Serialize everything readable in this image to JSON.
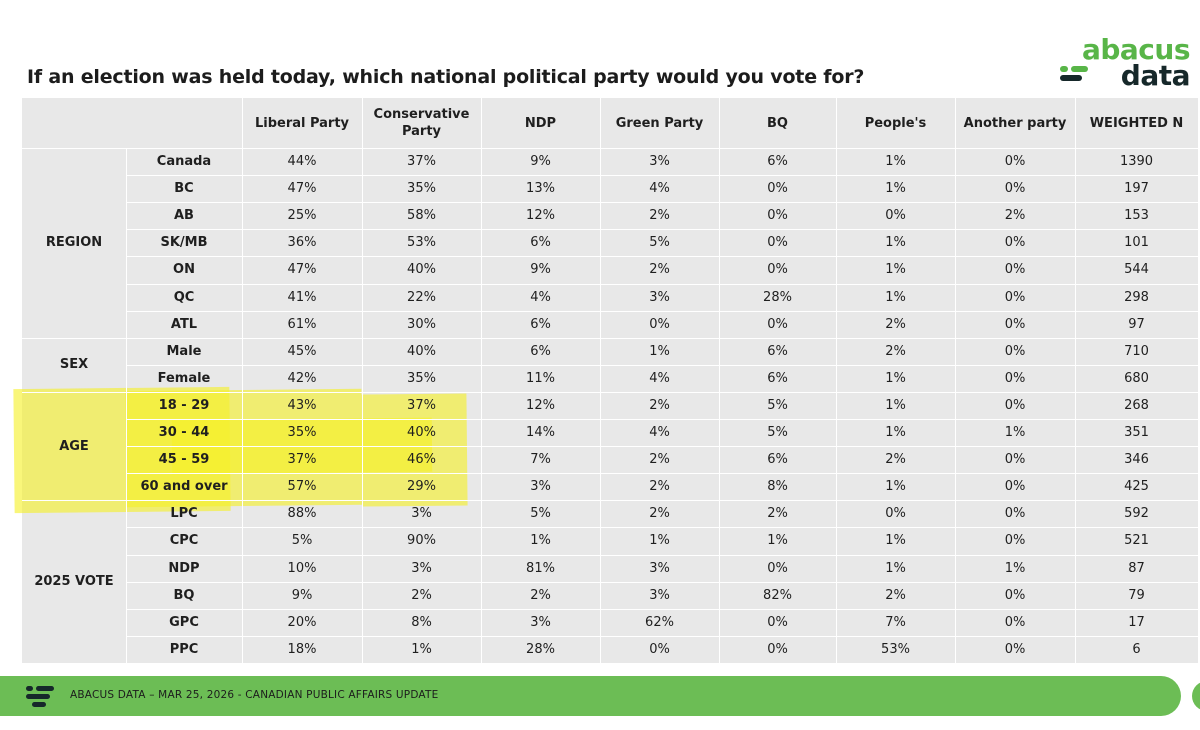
{
  "title": "If an election was held today, which national political party would you vote for?",
  "logo": {
    "top": "abacus",
    "bottom": "data"
  },
  "colors": {
    "brand_green": "#58b548",
    "brand_dark": "#16282a",
    "footer_green": "#6cbd55",
    "highlight": "#f5f028"
  },
  "chart_data": {
    "type": "table",
    "title": "If an election was held today, which national political party would you vote for?",
    "columns": [
      "Liberal Party",
      "Conservative Party",
      "NDP",
      "Green Party",
      "BQ",
      "People's",
      "Another party",
      "WEIGHTED N"
    ],
    "groups": [
      {
        "name": "REGION",
        "start": 0,
        "count": 7
      },
      {
        "name": "SEX",
        "start": 7,
        "count": 2
      },
      {
        "name": "AGE",
        "start": 9,
        "count": 4
      },
      {
        "name": "2025 VOTE",
        "start": 13,
        "count": 6
      }
    ],
    "rows": [
      {
        "label": "Canada",
        "values": [
          "44%",
          "37%",
          "9%",
          "3%",
          "6%",
          "1%",
          "0%",
          "1390"
        ]
      },
      {
        "label": "BC",
        "values": [
          "47%",
          "35%",
          "13%",
          "4%",
          "0%",
          "1%",
          "0%",
          "197"
        ]
      },
      {
        "label": "AB",
        "values": [
          "25%",
          "58%",
          "12%",
          "2%",
          "0%",
          "0%",
          "2%",
          "153"
        ]
      },
      {
        "label": "SK/MB",
        "values": [
          "36%",
          "53%",
          "6%",
          "5%",
          "0%",
          "1%",
          "0%",
          "101"
        ]
      },
      {
        "label": "ON",
        "values": [
          "47%",
          "40%",
          "9%",
          "2%",
          "0%",
          "1%",
          "0%",
          "544"
        ]
      },
      {
        "label": "QC",
        "values": [
          "41%",
          "22%",
          "4%",
          "3%",
          "28%",
          "1%",
          "0%",
          "298"
        ]
      },
      {
        "label": "ATL",
        "values": [
          "61%",
          "30%",
          "6%",
          "0%",
          "0%",
          "2%",
          "0%",
          "97"
        ]
      },
      {
        "label": "Male",
        "values": [
          "45%",
          "40%",
          "6%",
          "1%",
          "6%",
          "2%",
          "0%",
          "710"
        ]
      },
      {
        "label": "Female",
        "values": [
          "42%",
          "35%",
          "11%",
          "4%",
          "6%",
          "1%",
          "0%",
          "680"
        ]
      },
      {
        "label": "18 - 29",
        "values": [
          "43%",
          "37%",
          "12%",
          "2%",
          "5%",
          "1%",
          "0%",
          "268"
        ]
      },
      {
        "label": "30 - 44",
        "values": [
          "35%",
          "40%",
          "14%",
          "4%",
          "5%",
          "1%",
          "1%",
          "351"
        ]
      },
      {
        "label": "45 - 59",
        "values": [
          "37%",
          "46%",
          "7%",
          "2%",
          "6%",
          "2%",
          "0%",
          "346"
        ]
      },
      {
        "label": "60 and over",
        "values": [
          "57%",
          "29%",
          "3%",
          "2%",
          "8%",
          "1%",
          "0%",
          "425"
        ]
      },
      {
        "label": "LPC",
        "values": [
          "88%",
          "3%",
          "5%",
          "2%",
          "2%",
          "0%",
          "0%",
          "592"
        ]
      },
      {
        "label": "CPC",
        "values": [
          "5%",
          "90%",
          "1%",
          "1%",
          "1%",
          "1%",
          "0%",
          "521"
        ]
      },
      {
        "label": "NDP",
        "values": [
          "10%",
          "3%",
          "81%",
          "3%",
          "0%",
          "1%",
          "1%",
          "87"
        ]
      },
      {
        "label": "BQ",
        "values": [
          "9%",
          "2%",
          "2%",
          "3%",
          "82%",
          "2%",
          "0%",
          "79"
        ]
      },
      {
        "label": "GPC",
        "values": [
          "20%",
          "8%",
          "3%",
          "62%",
          "0%",
          "7%",
          "0%",
          "17"
        ]
      },
      {
        "label": "PPC",
        "values": [
          "18%",
          "1%",
          "28%",
          "0%",
          "0%",
          "53%",
          "0%",
          "6"
        ]
      }
    ]
  },
  "footer": {
    "text": "ABACUS DATA – MAR 25, 2026 - CANADIAN PUBLIC AFFAIRS UPDATE"
  }
}
